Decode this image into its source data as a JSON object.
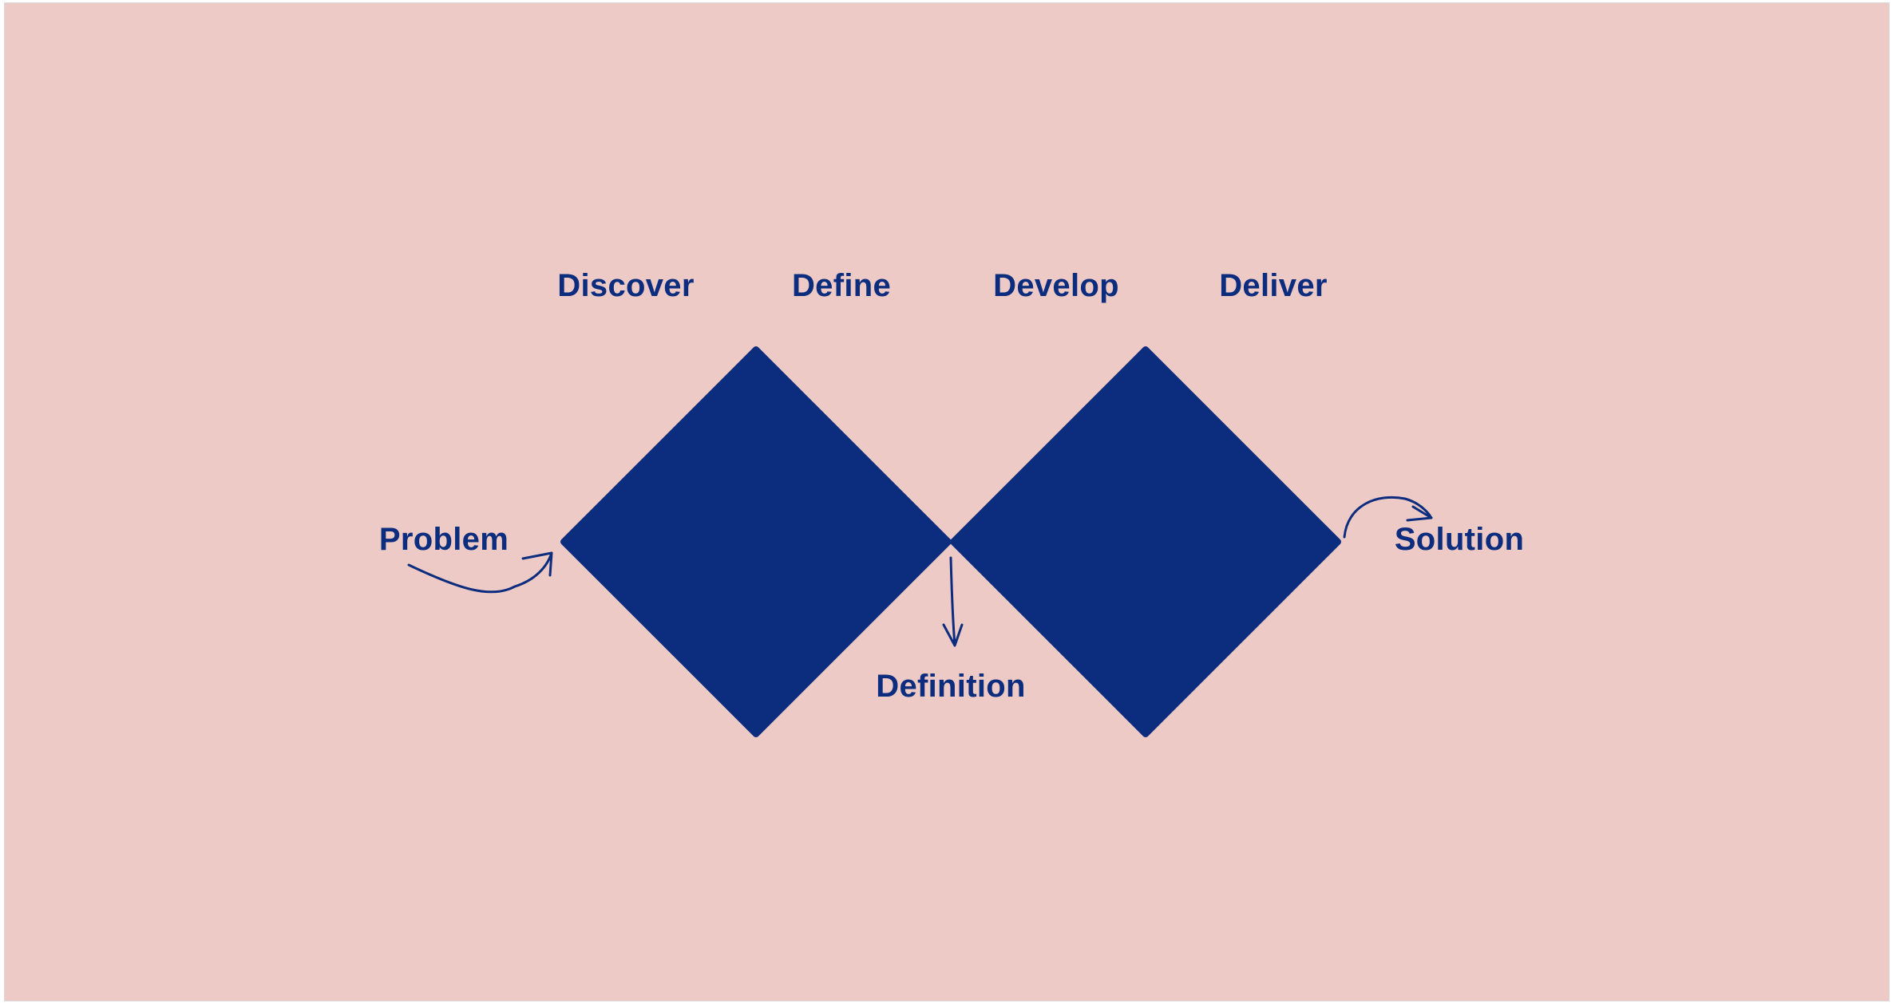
{
  "colors": {
    "background": "#EECAC7",
    "diamond": "#0C2D7E",
    "text": "#0C2D7E",
    "border": "#D9D9D9"
  },
  "phases": [
    "Discover",
    "Define",
    "Develop",
    "Deliver"
  ],
  "inputs": {
    "problem": "Problem",
    "definition": "Definition",
    "solution": "Solution"
  }
}
